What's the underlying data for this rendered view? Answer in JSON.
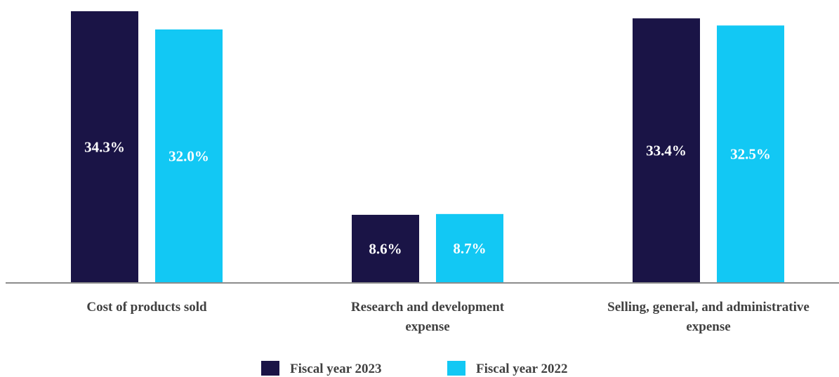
{
  "chart_data": {
    "type": "bar",
    "categories": [
      [
        "Cost of products sold"
      ],
      [
        "Research and development",
        "expense"
      ],
      [
        "Selling, general, and administrative",
        "expense"
      ]
    ],
    "series": [
      {
        "name": "Fiscal year 2023",
        "color": "#1a1446",
        "values": [
          34.3,
          8.6,
          33.4
        ],
        "labels": [
          "34.3%",
          "8.6%",
          "33.4%"
        ]
      },
      {
        "name": "Fiscal year 2022",
        "color": "#12c8f4",
        "values": [
          32.0,
          8.7,
          32.5
        ],
        "labels": [
          "32.0%",
          "8.7%",
          "32.5%"
        ]
      }
    ],
    "ylim": [
      0,
      34.3
    ],
    "legend_position": "bottom",
    "grid": false
  }
}
